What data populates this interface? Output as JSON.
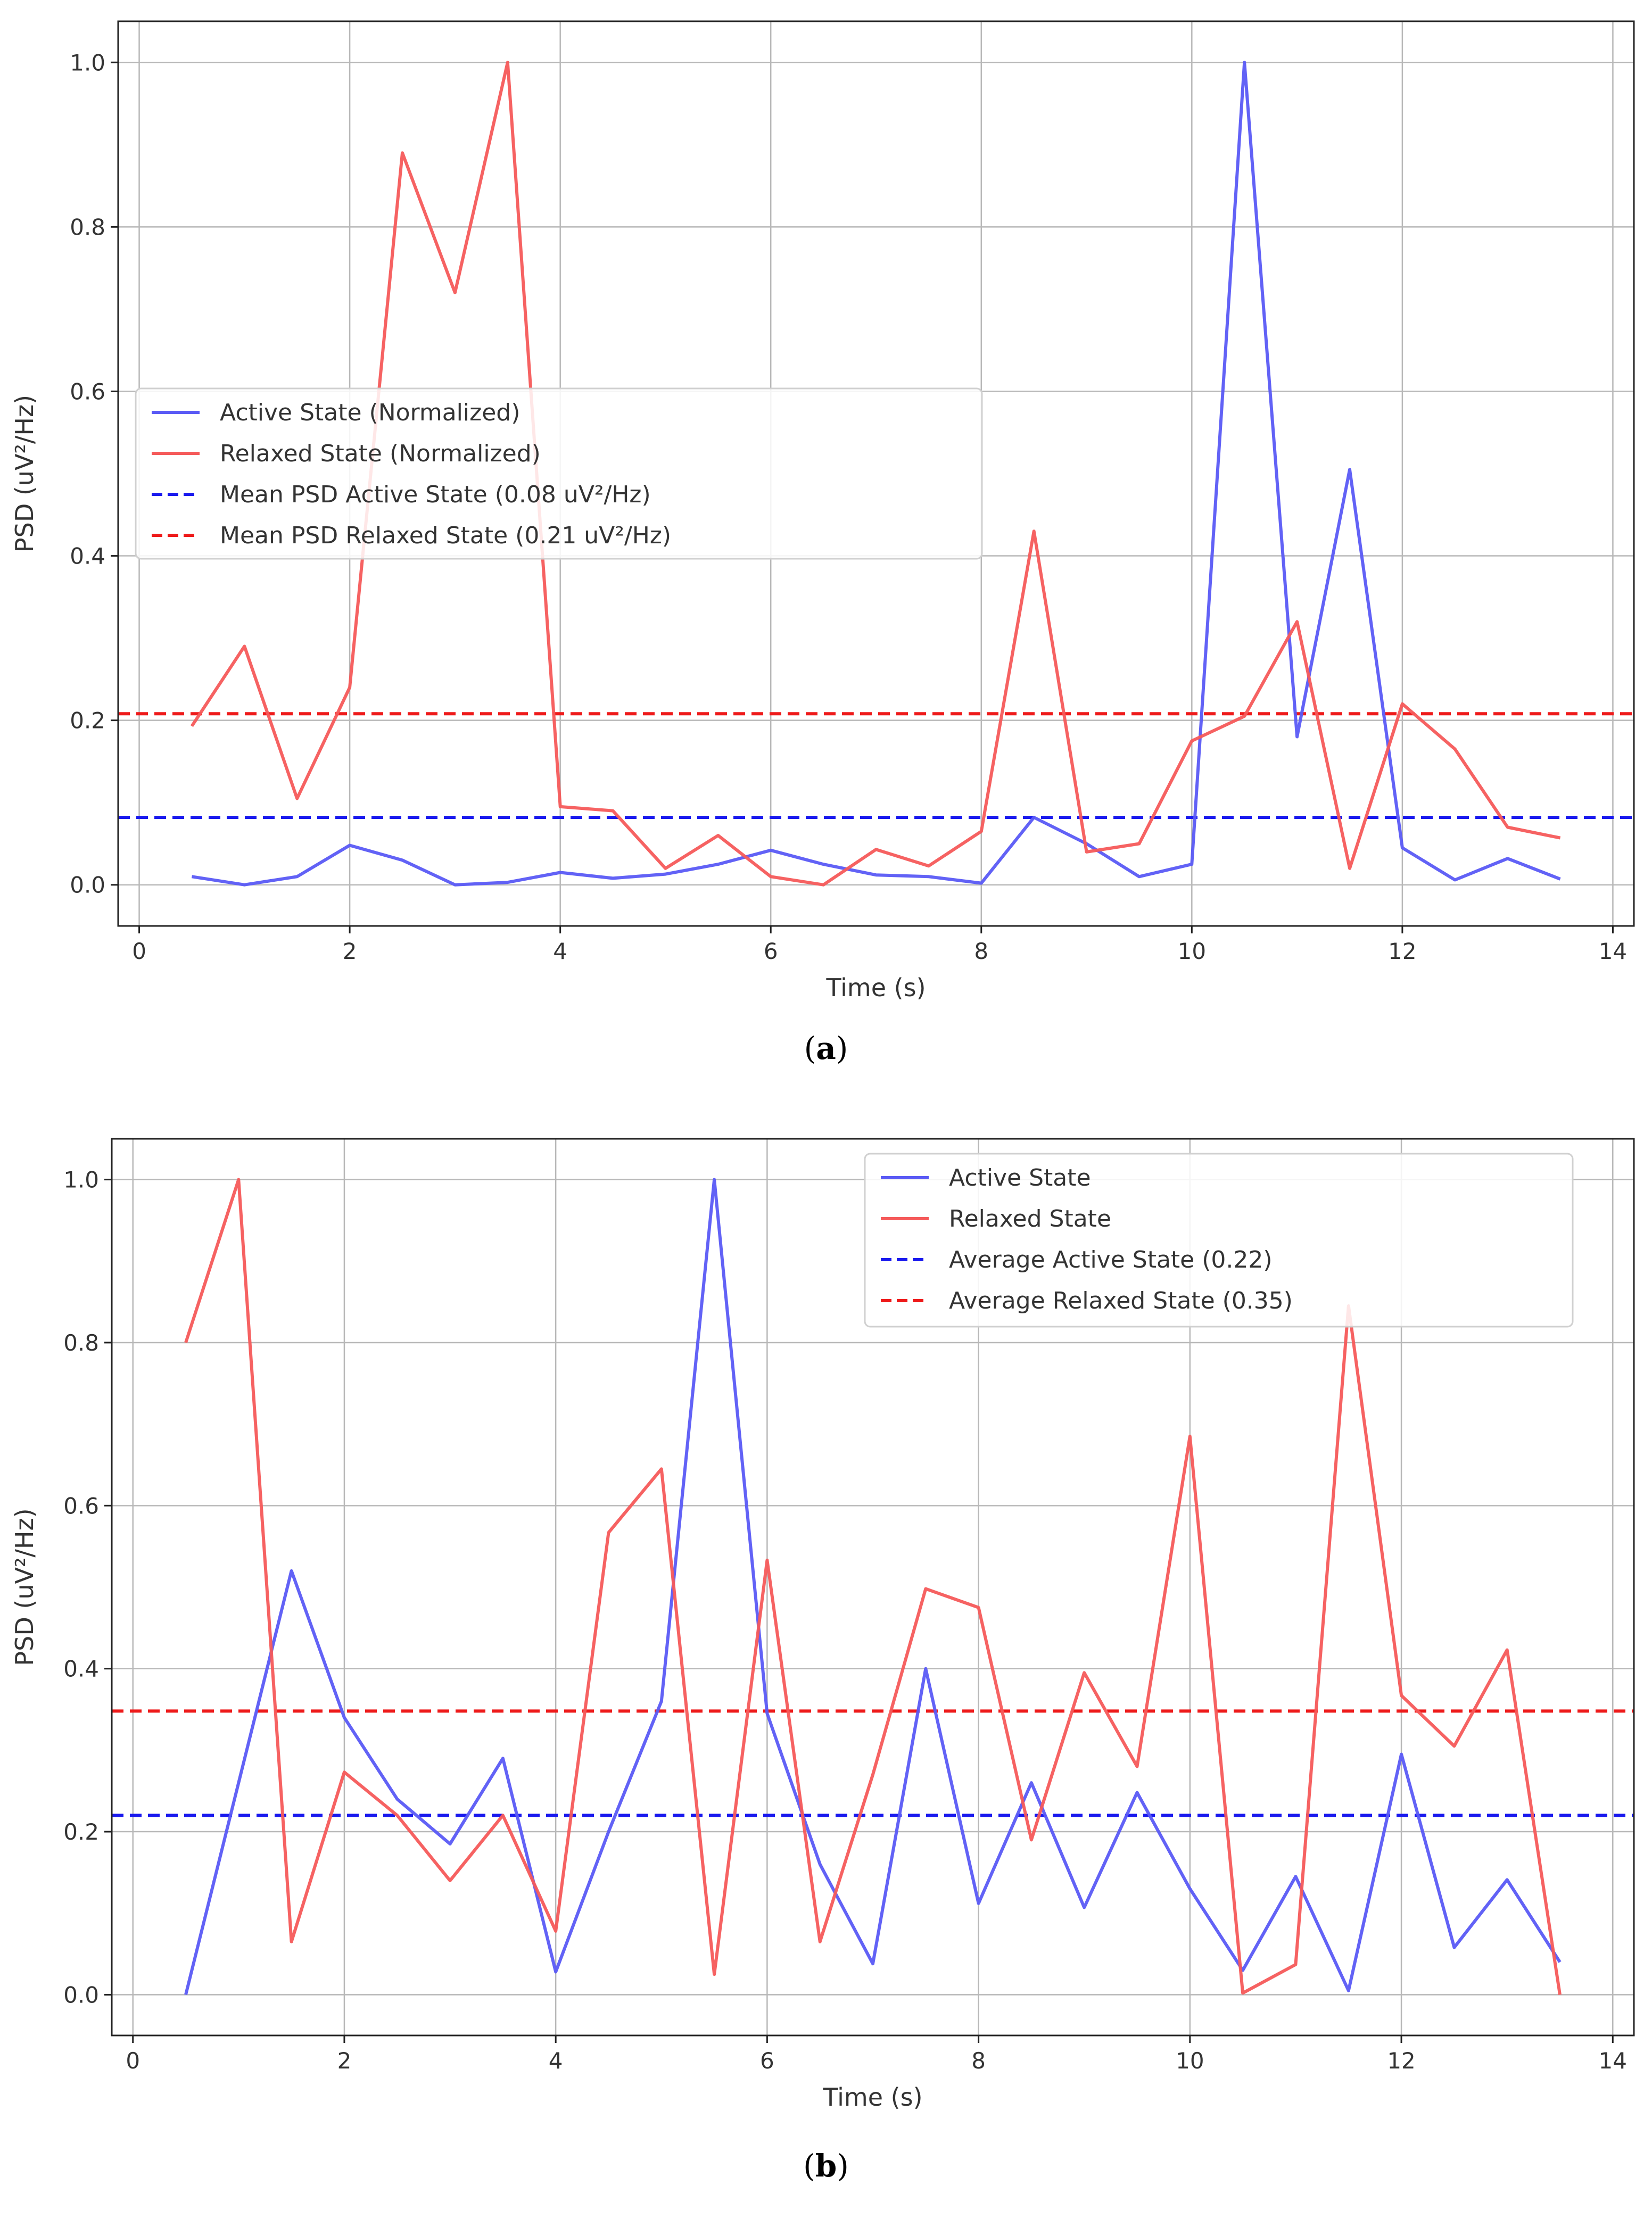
{
  "chart_data": [
    {
      "type": "line",
      "panel": "a",
      "caption_open": "(",
      "caption_letter": "a",
      "caption_close": ")",
      "title": "",
      "xlabel": "Time (s)",
      "ylabel": "PSD (uV²/Hz)",
      "xlim": [
        -0.2,
        14.2
      ],
      "ylim": [
        -0.05,
        1.05
      ],
      "xticks": [
        0,
        2,
        4,
        6,
        8,
        10,
        12,
        14
      ],
      "yticks": [
        0.0,
        0.2,
        0.4,
        0.6,
        0.8,
        1.0
      ],
      "grid": true,
      "legend_position": "center-left",
      "x": [
        0.5,
        1.0,
        1.5,
        2.0,
        2.5,
        3.0,
        3.5,
        4.0,
        4.5,
        5.0,
        5.5,
        6.0,
        6.5,
        7.0,
        7.5,
        8.0,
        8.5,
        9.0,
        9.5,
        10.0,
        10.5,
        11.0,
        11.5,
        12.0,
        12.5,
        13.0,
        13.5
      ],
      "series": [
        {
          "name": "Active State (Normalized)",
          "color": "#5a5af5",
          "style": "solid",
          "values": [
            0.01,
            0.0,
            0.01,
            0.048,
            0.03,
            0.0,
            0.003,
            0.015,
            0.008,
            0.013,
            0.025,
            0.042,
            0.025,
            0.012,
            0.01,
            0.002,
            0.082,
            0.05,
            0.01,
            0.025,
            1.0,
            0.18,
            0.505,
            0.045,
            0.006,
            0.032,
            0.007
          ]
        },
        {
          "name": "Relaxed State (Normalized)",
          "color": "#f55a5a",
          "style": "solid",
          "values": [
            0.193,
            0.29,
            0.105,
            0.24,
            0.89,
            0.72,
            1.0,
            0.095,
            0.09,
            0.02,
            0.06,
            0.01,
            0.0,
            0.043,
            0.023,
            0.065,
            0.43,
            0.04,
            0.05,
            0.175,
            0.205,
            0.32,
            0.02,
            0.22,
            0.165,
            0.07,
            0.057
          ]
        },
        {
          "name": "Mean PSD Active State (0.08 uV²/Hz)",
          "color": "#1a1aee",
          "style": "dashed",
          "constant": 0.082
        },
        {
          "name": "Mean PSD Relaxed State (0.21 uV²/Hz)",
          "color": "#ee1a1a",
          "style": "dashed",
          "constant": 0.208
        }
      ]
    },
    {
      "type": "line",
      "panel": "b",
      "caption_open": "(",
      "caption_letter": "b",
      "caption_close": ")",
      "title": "",
      "xlabel": "Time (s)",
      "ylabel": "PSD (uV²/Hz)",
      "xlim": [
        -0.2,
        14.2
      ],
      "ylim": [
        -0.05,
        1.05
      ],
      "xticks": [
        0,
        2,
        4,
        6,
        8,
        10,
        12,
        14
      ],
      "yticks": [
        0.0,
        0.2,
        0.4,
        0.6,
        0.8,
        1.0
      ],
      "grid": true,
      "legend_position": "top-right",
      "x": [
        0.5,
        1.0,
        1.5,
        2.0,
        2.5,
        3.0,
        3.5,
        4.0,
        4.5,
        5.0,
        5.5,
        6.0,
        6.5,
        7.0,
        7.5,
        8.0,
        8.5,
        9.0,
        9.5,
        10.0,
        10.5,
        11.0,
        11.5,
        12.0,
        12.5,
        13.0,
        13.5
      ],
      "series": [
        {
          "name": "Active State",
          "color": "#5a5af5",
          "style": "solid",
          "values": [
            0.0,
            0.26,
            0.52,
            0.34,
            0.24,
            0.185,
            0.29,
            0.028,
            0.2,
            0.36,
            1.0,
            0.345,
            0.16,
            0.038,
            0.4,
            0.112,
            0.26,
            0.107,
            0.248,
            0.13,
            0.03,
            0.145,
            0.005,
            0.295,
            0.058,
            0.141,
            0.04
          ]
        },
        {
          "name": "Relaxed State",
          "color": "#f55a5a",
          "style": "solid",
          "values": [
            0.8,
            1.0,
            0.065,
            0.273,
            0.22,
            0.14,
            0.22,
            0.078,
            0.567,
            0.645,
            0.025,
            0.533,
            0.065,
            0.27,
            0.498,
            0.475,
            0.19,
            0.395,
            0.28,
            0.685,
            0.002,
            0.037,
            0.845,
            0.367,
            0.305,
            0.423,
            0.0
          ]
        },
        {
          "name": "Average Active State (0.22)",
          "color": "#1a1aee",
          "style": "dashed",
          "constant": 0.22
        },
        {
          "name": "Average Relaxed State (0.35)",
          "color": "#ee1a1a",
          "style": "dashed",
          "constant": 0.348
        }
      ]
    }
  ]
}
